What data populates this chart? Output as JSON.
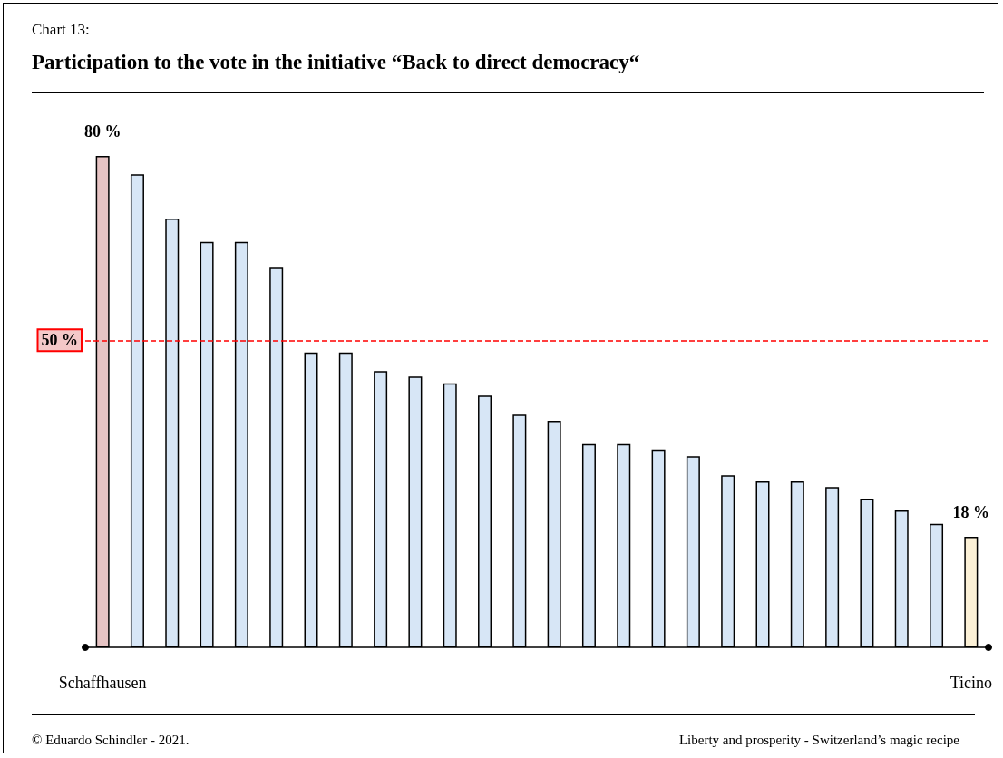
{
  "chart_data": {
    "type": "bar",
    "subtitle": "Chart 13:",
    "title": "Participation to the vote in the initiative “Back to direct democracy“",
    "categories": [
      "Schaffhausen",
      null,
      null,
      null,
      null,
      null,
      null,
      null,
      null,
      null,
      null,
      null,
      null,
      null,
      null,
      null,
      null,
      null,
      null,
      null,
      null,
      null,
      null,
      null,
      null,
      "Ticino"
    ],
    "values": [
      80,
      77,
      69.8,
      66,
      66,
      61.8,
      48,
      48,
      45,
      44.1,
      43,
      41,
      37.9,
      36.9,
      33.1,
      33.1,
      32.2,
      31.1,
      28,
      27,
      27,
      26.1,
      24.2,
      22.3,
      20.1,
      18
    ],
    "value_labels": [
      "80 %",
      null,
      null,
      null,
      null,
      null,
      null,
      null,
      null,
      null,
      null,
      null,
      null,
      null,
      null,
      null,
      null,
      null,
      null,
      null,
      null,
      null,
      null,
      null,
      null,
      "18 %"
    ],
    "colors": [
      "#e6c3c3",
      "#d7e6f6",
      "#d7e6f6",
      "#d7e6f6",
      "#d7e6f6",
      "#d7e6f6",
      "#d7e6f6",
      "#d7e6f6",
      "#d7e6f6",
      "#d7e6f6",
      "#d7e6f6",
      "#d7e6f6",
      "#d7e6f6",
      "#d7e6f6",
      "#d7e6f6",
      "#d7e6f6",
      "#d7e6f6",
      "#d7e6f6",
      "#d7e6f6",
      "#d7e6f6",
      "#d7e6f6",
      "#d7e6f6",
      "#d7e6f6",
      "#d7e6f6",
      "#d7e6f6",
      "#fbf0d6"
    ],
    "ref_lines": [
      {
        "axis": "y",
        "value": 50,
        "label": "50 %",
        "color": "#ff0000",
        "line_style": "dashed"
      }
    ],
    "annotations": [
      "© Eduardo Schindler - 2021.",
      "Liberty and prosperity - Switzerland’s magic recipe"
    ],
    "grid": false,
    "tick_labels": "x"
  }
}
